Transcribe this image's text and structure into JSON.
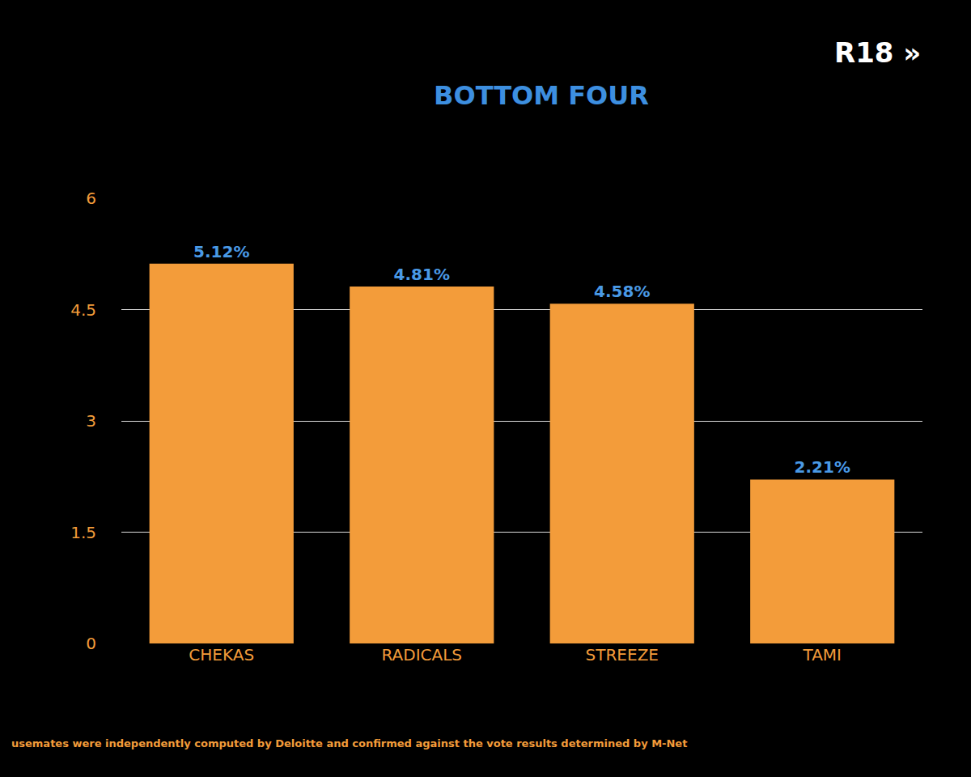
{
  "chart_data": {
    "type": "bar",
    "title": "BOTTOM FOUR",
    "categories": [
      "CHEKAS",
      "RADICALS",
      "STREEZE",
      "TAMI"
    ],
    "values": [
      5.12,
      4.81,
      4.58,
      2.21
    ],
    "value_labels": [
      "5.12%",
      "4.81%",
      "4.58%",
      "2.21%"
    ],
    "color": "#f39c3a",
    "ylim": [
      0,
      6
    ],
    "yticks": [
      0,
      1.5,
      3,
      4.5,
      6
    ],
    "grid": true,
    "data_labels": true,
    "annotations": [
      "R18 »",
      "usemates were independently computed by Deloitte and confirmed against the vote results determined by M-Net"
    ]
  }
}
